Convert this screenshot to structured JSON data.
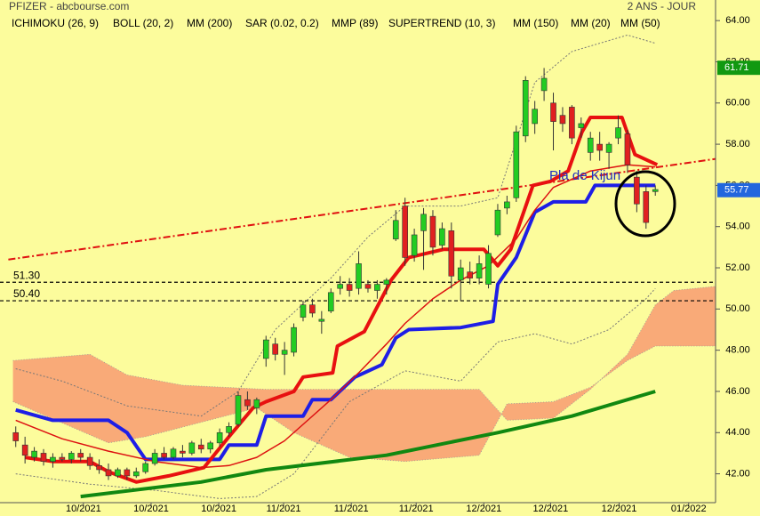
{
  "chart_data": {
    "type": "candlestick",
    "title": "PFIZER - abcbourse.com",
    "subtitle": "2 ANS - JOUR",
    "annotation": "Pla de Kijun",
    "xlim": [
      -1.7,
      75.5
    ],
    "ylim": [
      40.6,
      65.0
    ],
    "xticks": [
      {
        "value": 7.3,
        "label": "10/2021"
      },
      {
        "value": 14.6,
        "label": "10/2021"
      },
      {
        "value": 21.9,
        "label": "10/2021"
      },
      {
        "value": 28.9,
        "label": "11/2021"
      },
      {
        "value": 36.2,
        "label": "11/2021"
      },
      {
        "value": 43.2,
        "label": "11/2021"
      },
      {
        "value": 50.5,
        "label": "12/2021"
      },
      {
        "value": 57.7,
        "label": "12/2021"
      },
      {
        "value": 65.1,
        "label": "12/2021"
      },
      {
        "value": 72.6,
        "label": "01/2022"
      }
    ],
    "yticks": [
      {
        "value": 42,
        "label": "42.00"
      },
      {
        "value": 44,
        "label": "44.00"
      },
      {
        "value": 46,
        "label": "46.00"
      },
      {
        "value": 48,
        "label": "48.00"
      },
      {
        "value": 50,
        "label": "50.00"
      },
      {
        "value": 52,
        "label": "52.00"
      },
      {
        "value": 54,
        "label": "54.00"
      },
      {
        "value": 56,
        "label": "56.00"
      },
      {
        "value": 58,
        "label": "58.00"
      },
      {
        "value": 60,
        "label": "60.00"
      },
      {
        "value": 62,
        "label": "62.00"
      },
      {
        "value": 64,
        "label": "64.00"
      }
    ],
    "up_color": "#22cc22",
    "down_color": "#e02020",
    "open": [
      44.0,
      43.4,
      42.8,
      43.0,
      42.6,
      42.8,
      42.7,
      43.0,
      42.8,
      42.4,
      42.2,
      41.9,
      42.2,
      41.9,
      42.1,
      42.5,
      43.0,
      42.8,
      43.1,
      43.0,
      43.4,
      43.2,
      43.5,
      44.0,
      44.4,
      45.6,
      45.2,
      47.6,
      48.3,
      47.8,
      47.9,
      49.6,
      50.2,
      49.4,
      49.9,
      51.0,
      51.2,
      51.0,
      51.2,
      50.9,
      51.2,
      53.4,
      55.0,
      52.6,
      53.8,
      54.5,
      53.1,
      53.8,
      51.4,
      51.8,
      51.5,
      51.2,
      53.6,
      54.9,
      55.4,
      58.4,
      59.0,
      60.6,
      60.0,
      59.4,
      59.8,
      58.8,
      57.6,
      58.0,
      57.6,
      58.3,
      58.5,
      56.4,
      55.7,
      55.7
    ],
    "high": [
      44.3,
      43.8,
      43.3,
      43.2,
      43.0,
      43.0,
      43.1,
      43.2,
      43.0,
      42.7,
      42.5,
      42.3,
      42.3,
      42.3,
      42.6,
      43.2,
      43.3,
      43.3,
      43.4,
      43.6,
      43.7,
      43.6,
      44.2,
      44.5,
      46.0,
      46.0,
      45.7,
      48.7,
      48.6,
      48.4,
      49.3,
      50.4,
      50.5,
      49.9,
      51.0,
      51.6,
      51.5,
      52.8,
      51.4,
      51.4,
      51.5,
      54.8,
      55.4,
      53.9,
      54.9,
      54.8,
      54.2,
      54.2,
      52.4,
      52.3,
      52.6,
      53.1,
      55.1,
      55.5,
      58.9,
      61.3,
      60.1,
      61.7,
      60.5,
      59.8,
      59.9,
      59.3,
      58.6,
      58.6,
      58.1,
      59.4,
      58.7,
      56.7,
      56.0,
      56.0
    ],
    "low": [
      43.3,
      42.5,
      42.6,
      42.4,
      42.3,
      42.6,
      42.5,
      42.6,
      42.2,
      42.0,
      41.7,
      41.8,
      41.7,
      41.8,
      42.0,
      42.4,
      42.7,
      42.7,
      42.8,
      42.9,
      43.0,
      43.0,
      43.3,
      43.8,
      44.3,
      45.1,
      44.9,
      47.2,
      47.5,
      46.8,
      47.7,
      49.4,
      49.6,
      48.8,
      49.8,
      50.7,
      50.6,
      50.7,
      50.8,
      50.5,
      50.7,
      53.3,
      52.1,
      52.3,
      51.9,
      52.6,
      52.9,
      51.0,
      50.4,
      51.2,
      51.2,
      51.0,
      53.5,
      54.6,
      55.2,
      58.1,
      58.5,
      60.1,
      57.7,
      58.6,
      58.0,
      58.3,
      57.2,
      57.2,
      56.8,
      58.0,
      56.6,
      54.7,
      53.9,
      55.5
    ],
    "close": [
      43.6,
      42.9,
      43.1,
      42.6,
      42.8,
      42.7,
      43.0,
      42.8,
      42.4,
      42.2,
      41.9,
      42.2,
      41.9,
      42.1,
      42.5,
      43.0,
      42.8,
      43.2,
      43.0,
      43.5,
      43.2,
      43.5,
      44.0,
      44.3,
      45.8,
      45.3,
      45.6,
      48.5,
      47.8,
      48.0,
      49.1,
      50.2,
      49.8,
      49.5,
      50.8,
      51.2,
      50.9,
      52.2,
      51.0,
      51.2,
      51.4,
      54.3,
      52.5,
      53.6,
      54.6,
      53.0,
      53.9,
      51.6,
      52.0,
      51.5,
      52.2,
      52.7,
      54.8,
      55.2,
      58.6,
      61.1,
      59.7,
      61.2,
      59.1,
      59.0,
      58.3,
      59.0,
      58.3,
      57.7,
      58.0,
      58.8,
      57.0,
      55.1,
      54.2,
      55.8
    ],
    "series": [
      {
        "name": "ICHIMOKU (26, 9)",
        "color": "#1a1a8c",
        "fill": "#f9aa78",
        "x_a": [
          -0.3,
          8,
          12,
          18,
          27,
          50,
          53,
          58,
          62,
          66,
          69,
          71,
          75.5
        ],
        "span_a": [
          47.5,
          47.8,
          46.8,
          46.3,
          46.1,
          46.1,
          44.6,
          44.7,
          46.1,
          47.8,
          50.2,
          50.9,
          51.1
        ],
        "x_b": [
          -0.3,
          10,
          14,
          26,
          30,
          36,
          42,
          50,
          53,
          58,
          62,
          66,
          69,
          75.5
        ],
        "span_b": [
          45.5,
          43.5,
          43.8,
          45.2,
          44.0,
          42.8,
          42.6,
          42.9,
          45.4,
          45.5,
          46.2,
          47.5,
          48.2,
          48.2
        ]
      },
      {
        "name": "BOLL (20, 2)",
        "color": "#4a6fb5",
        "line_color": "#777777",
        "x_upper": [
          0,
          5,
          12,
          20,
          24,
          28,
          34,
          38,
          42,
          48,
          52,
          56,
          60,
          66,
          69
        ],
        "upper": [
          47.1,
          46.5,
          45.3,
          44.8,
          46.0,
          49.0,
          51.5,
          53.5,
          55.0,
          55.0,
          55.4,
          61.0,
          62.5,
          63.3,
          62.9
        ],
        "x_lower": [
          0,
          8,
          15,
          22,
          26,
          30,
          36,
          42,
          48,
          52,
          56,
          60,
          64,
          68,
          69
        ],
        "lower": [
          42.0,
          41.5,
          41.2,
          40.8,
          40.9,
          42.0,
          45.5,
          47.0,
          46.5,
          48.4,
          48.8,
          48.3,
          49.0,
          50.5,
          51.0
        ]
      },
      {
        "name": "MM (200)",
        "color": "#0000cc"
      },
      {
        "name": "SAR (0.02, 0.2)",
        "color": "#e01010"
      },
      {
        "name": "MMP (89)",
        "color": "#1e1ee6",
        "width": 4,
        "x": [
          0,
          4,
          10,
          12,
          14,
          22,
          23,
          26,
          27,
          31,
          32,
          34,
          36.6,
          39.5,
          41,
          42.4,
          48,
          51.5,
          52,
          54,
          56,
          58,
          61.5,
          62.5,
          69
        ],
        "values": [
          45.1,
          44.6,
          44.6,
          44.0,
          42.7,
          42.7,
          43.4,
          43.4,
          44.8,
          44.8,
          45.6,
          45.6,
          46.7,
          47.3,
          48.6,
          49.0,
          49.1,
          49.4,
          51.2,
          52.5,
          54.7,
          55.2,
          55.2,
          56.0,
          56.0
        ]
      },
      {
        "name": "SUPERTREND (10, 3)",
        "color": "#e81010",
        "width": 4,
        "x": [
          1,
          4,
          8,
          10,
          13,
          16.5,
          20.3,
          23,
          25.6,
          27,
          30,
          31,
          34.2,
          34.7,
          37.6,
          40.5,
          42.4,
          46.2,
          50.5,
          52,
          53.4,
          55.8,
          57.7,
          59.6,
          61.1,
          62,
          65.4,
          66.8,
          69.2
        ],
        "values": [
          42.8,
          42.6,
          42.6,
          42.1,
          41.6,
          41.9,
          42.3,
          43.8,
          45.2,
          45.5,
          46.0,
          46.7,
          46.9,
          48.2,
          48.9,
          51.4,
          52.5,
          52.9,
          52.9,
          52.1,
          52.9,
          56.0,
          56.2,
          56.7,
          58.6,
          59.3,
          59.3,
          57.5,
          57.0
        ]
      },
      {
        "name": "MM (150)",
        "color": "#118811",
        "width": 4,
        "x": [
          7,
          20,
          27,
          40,
          52,
          60,
          69
        ],
        "values": [
          40.9,
          41.6,
          42.2,
          42.9,
          44.0,
          44.8,
          46.0
        ]
      },
      {
        "name": "MM (20)",
        "color": "#dd1111",
        "width": 1.5,
        "x": [
          0,
          5,
          10,
          15,
          20,
          23,
          26,
          29,
          31,
          34,
          37,
          40,
          42,
          45,
          48,
          51,
          54,
          56,
          58,
          62,
          66,
          69
        ],
        "values": [
          44.6,
          43.7,
          43.1,
          42.6,
          42.3,
          42.4,
          42.8,
          43.6,
          44.4,
          45.6,
          46.9,
          48.3,
          49.3,
          50.5,
          51.4,
          52.1,
          53.4,
          54.8,
          55.9,
          56.7,
          57.0,
          56.9
        ]
      },
      {
        "name": "MM (50)",
        "color": "#000000"
      }
    ],
    "trendline": {
      "color": "#e01010",
      "x": [
        -0.8,
        75.7
      ],
      "values": [
        52.4,
        57.3
      ]
    },
    "levels": [
      {
        "value": 51.3,
        "label": "51.30"
      },
      {
        "value": 50.4,
        "label": "50.40"
      }
    ],
    "price_markers": [
      {
        "value": 61.71,
        "color": "#119911"
      },
      {
        "value": 55.77,
        "color": "#2266dd"
      }
    ]
  }
}
